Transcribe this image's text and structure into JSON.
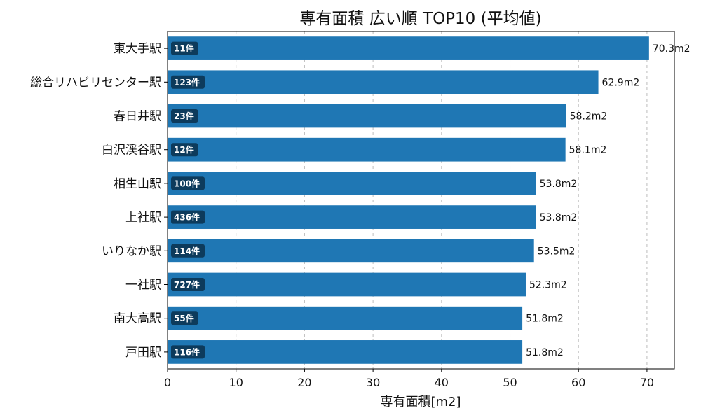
{
  "chart_data": {
    "type": "bar",
    "orientation": "horizontal",
    "title": "専有面積 広い順 TOP10 (平均値)",
    "xlabel": "専有面積[m2]",
    "ylabel": "",
    "xlim": [
      0,
      74
    ],
    "xticks": [
      0,
      10,
      20,
      30,
      40,
      50,
      60,
      70
    ],
    "grid": "x-dashed",
    "categories": [
      "東大手駅",
      "総合リハビリセンター駅",
      "春日井駅",
      "白沢渓谷駅",
      "相生山駅",
      "上社駅",
      "いりなか駅",
      "一社駅",
      "南大高駅",
      "戸田駅"
    ],
    "values": [
      70.3,
      62.9,
      58.2,
      58.1,
      53.8,
      53.8,
      53.5,
      52.3,
      51.8,
      51.8
    ],
    "value_labels": [
      "70.3m2",
      "62.9m2",
      "58.2m2",
      "58.1m2",
      "53.8m2",
      "53.8m2",
      "53.5m2",
      "52.3m2",
      "51.8m2",
      "51.8m2"
    ],
    "count_labels": [
      "11件",
      "123件",
      "23件",
      "12件",
      "100件",
      "436件",
      "114件",
      "727件",
      "55件",
      "116件"
    ],
    "colors": {
      "bar": "#1f77b4",
      "count_badge": "#0d3b5c"
    }
  }
}
